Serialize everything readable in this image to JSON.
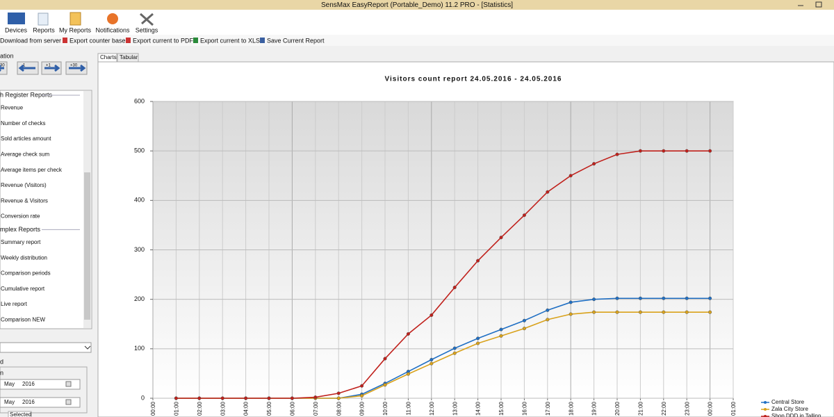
{
  "window": {
    "title": "SensMax EasyReport (Portable_Demo) 11.2 PRO - [Statistics]"
  },
  "ribbon": {
    "items": [
      "Devices",
      "Reports",
      "My Reports",
      "Notifications",
      "Settings"
    ]
  },
  "toolbar": {
    "items": [
      "Download from server",
      "Export counter base",
      "Export current to PDF",
      "Export current to XLS",
      "Save Current Report"
    ]
  },
  "navigation": {
    "label": "ation",
    "steps": [
      "-30",
      "-1",
      "+1",
      "+30"
    ]
  },
  "reports": {
    "groups": [
      {
        "title": "h Register Reports",
        "items": [
          "Revenue",
          "Number of checks",
          "Sold articles amount",
          "Average check sum",
          "Average items per check",
          "Revenue (Visitors)",
          "Revenue & Visitors",
          "Conversion rate"
        ]
      },
      {
        "title": "mplex Reports",
        "items": [
          "Summary report",
          "Weekly distribution",
          "Comparison periods",
          "Cumulative report",
          "Live report",
          "Comparison NEW"
        ]
      }
    ]
  },
  "period": {
    "label": "d",
    "sublabel": "n",
    "dates": [
      {
        "month": "May",
        "year": "2016"
      },
      {
        "month": "May",
        "year": "2016"
      }
    ],
    "tab": "Selected"
  },
  "tabs": [
    "Charts",
    "Tabular"
  ],
  "chart_data": {
    "type": "line",
    "title": "Visitors count report 24.05.2016 - 24.05.2016",
    "categories": [
      "00:00",
      "01:00",
      "02:00",
      "03:00",
      "04:00",
      "05:00",
      "06:00",
      "07:00",
      "08:00",
      "09:00",
      "10:00",
      "11:00",
      "12:00",
      "13:00",
      "14:00",
      "15:00",
      "16:00",
      "17:00",
      "18:00",
      "19:00",
      "20:00",
      "21:00",
      "22:00",
      "23:00",
      "00:00",
      "01:00"
    ],
    "series": [
      {
        "name": "Central Store",
        "color": "#1f6fc4",
        "values": [
          null,
          0,
          0,
          0,
          0,
          0,
          0,
          0,
          0,
          8,
          30,
          54,
          78,
          101,
          121,
          139,
          157,
          178,
          194,
          200,
          202,
          202,
          202,
          202,
          202,
          null
        ]
      },
      {
        "name": "Zala City Store",
        "color": "#d9a21b",
        "values": [
          null,
          0,
          0,
          0,
          0,
          0,
          0,
          0,
          0,
          5,
          27,
          49,
          70,
          91,
          111,
          126,
          141,
          159,
          170,
          174,
          174,
          174,
          174,
          174,
          174,
          null
        ]
      },
      {
        "name": "Shop DDD in Tallinn",
        "color": "#c0201b",
        "values": [
          null,
          0,
          0,
          0,
          0,
          0,
          0,
          2,
          10,
          25,
          80,
          130,
          168,
          224,
          278,
          325,
          370,
          417,
          450,
          474,
          493,
          500,
          500,
          500,
          500,
          null
        ]
      }
    ],
    "ylim": [
      0,
      600
    ],
    "yticks": [
      0,
      100,
      200,
      300,
      400,
      500,
      600
    ],
    "grid": true,
    "legend": "lower right"
  }
}
